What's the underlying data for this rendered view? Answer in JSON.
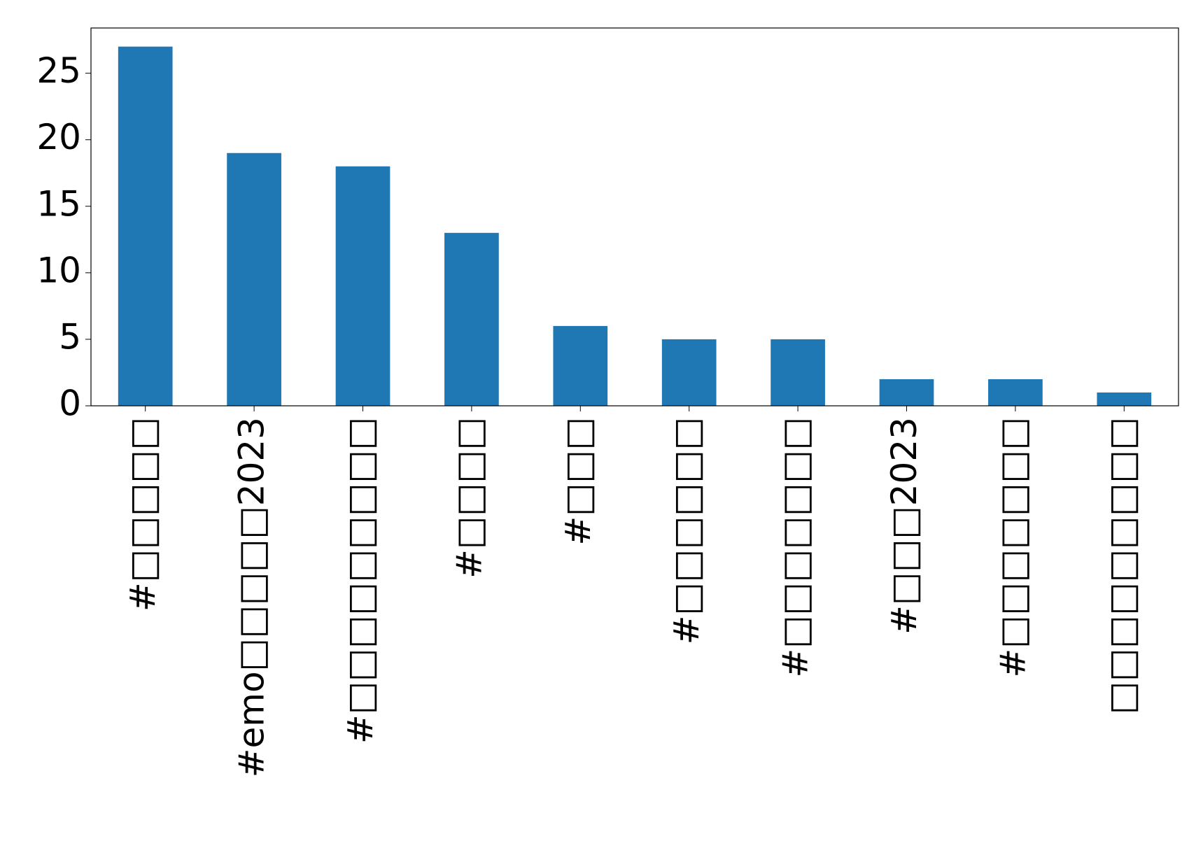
{
  "chart_data": {
    "type": "bar",
    "categories": [
      "#□□□□□",
      "#emo□□□□□2023",
      "#□□□□□□□□□",
      "#□□□□",
      "#□□□",
      "#□□□□□□",
      "#□□□□□□□",
      "#□□□2023",
      "#□□□□□□□",
      "□□□□□□□□□"
    ],
    "values": [
      27,
      19,
      18,
      13,
      6,
      5,
      5,
      2,
      2,
      1
    ],
    "color": "#1f77b4",
    "ylim": [
      0,
      28.4
    ],
    "yticks": [
      0,
      5,
      10,
      15,
      20,
      25
    ],
    "grid": false
  }
}
